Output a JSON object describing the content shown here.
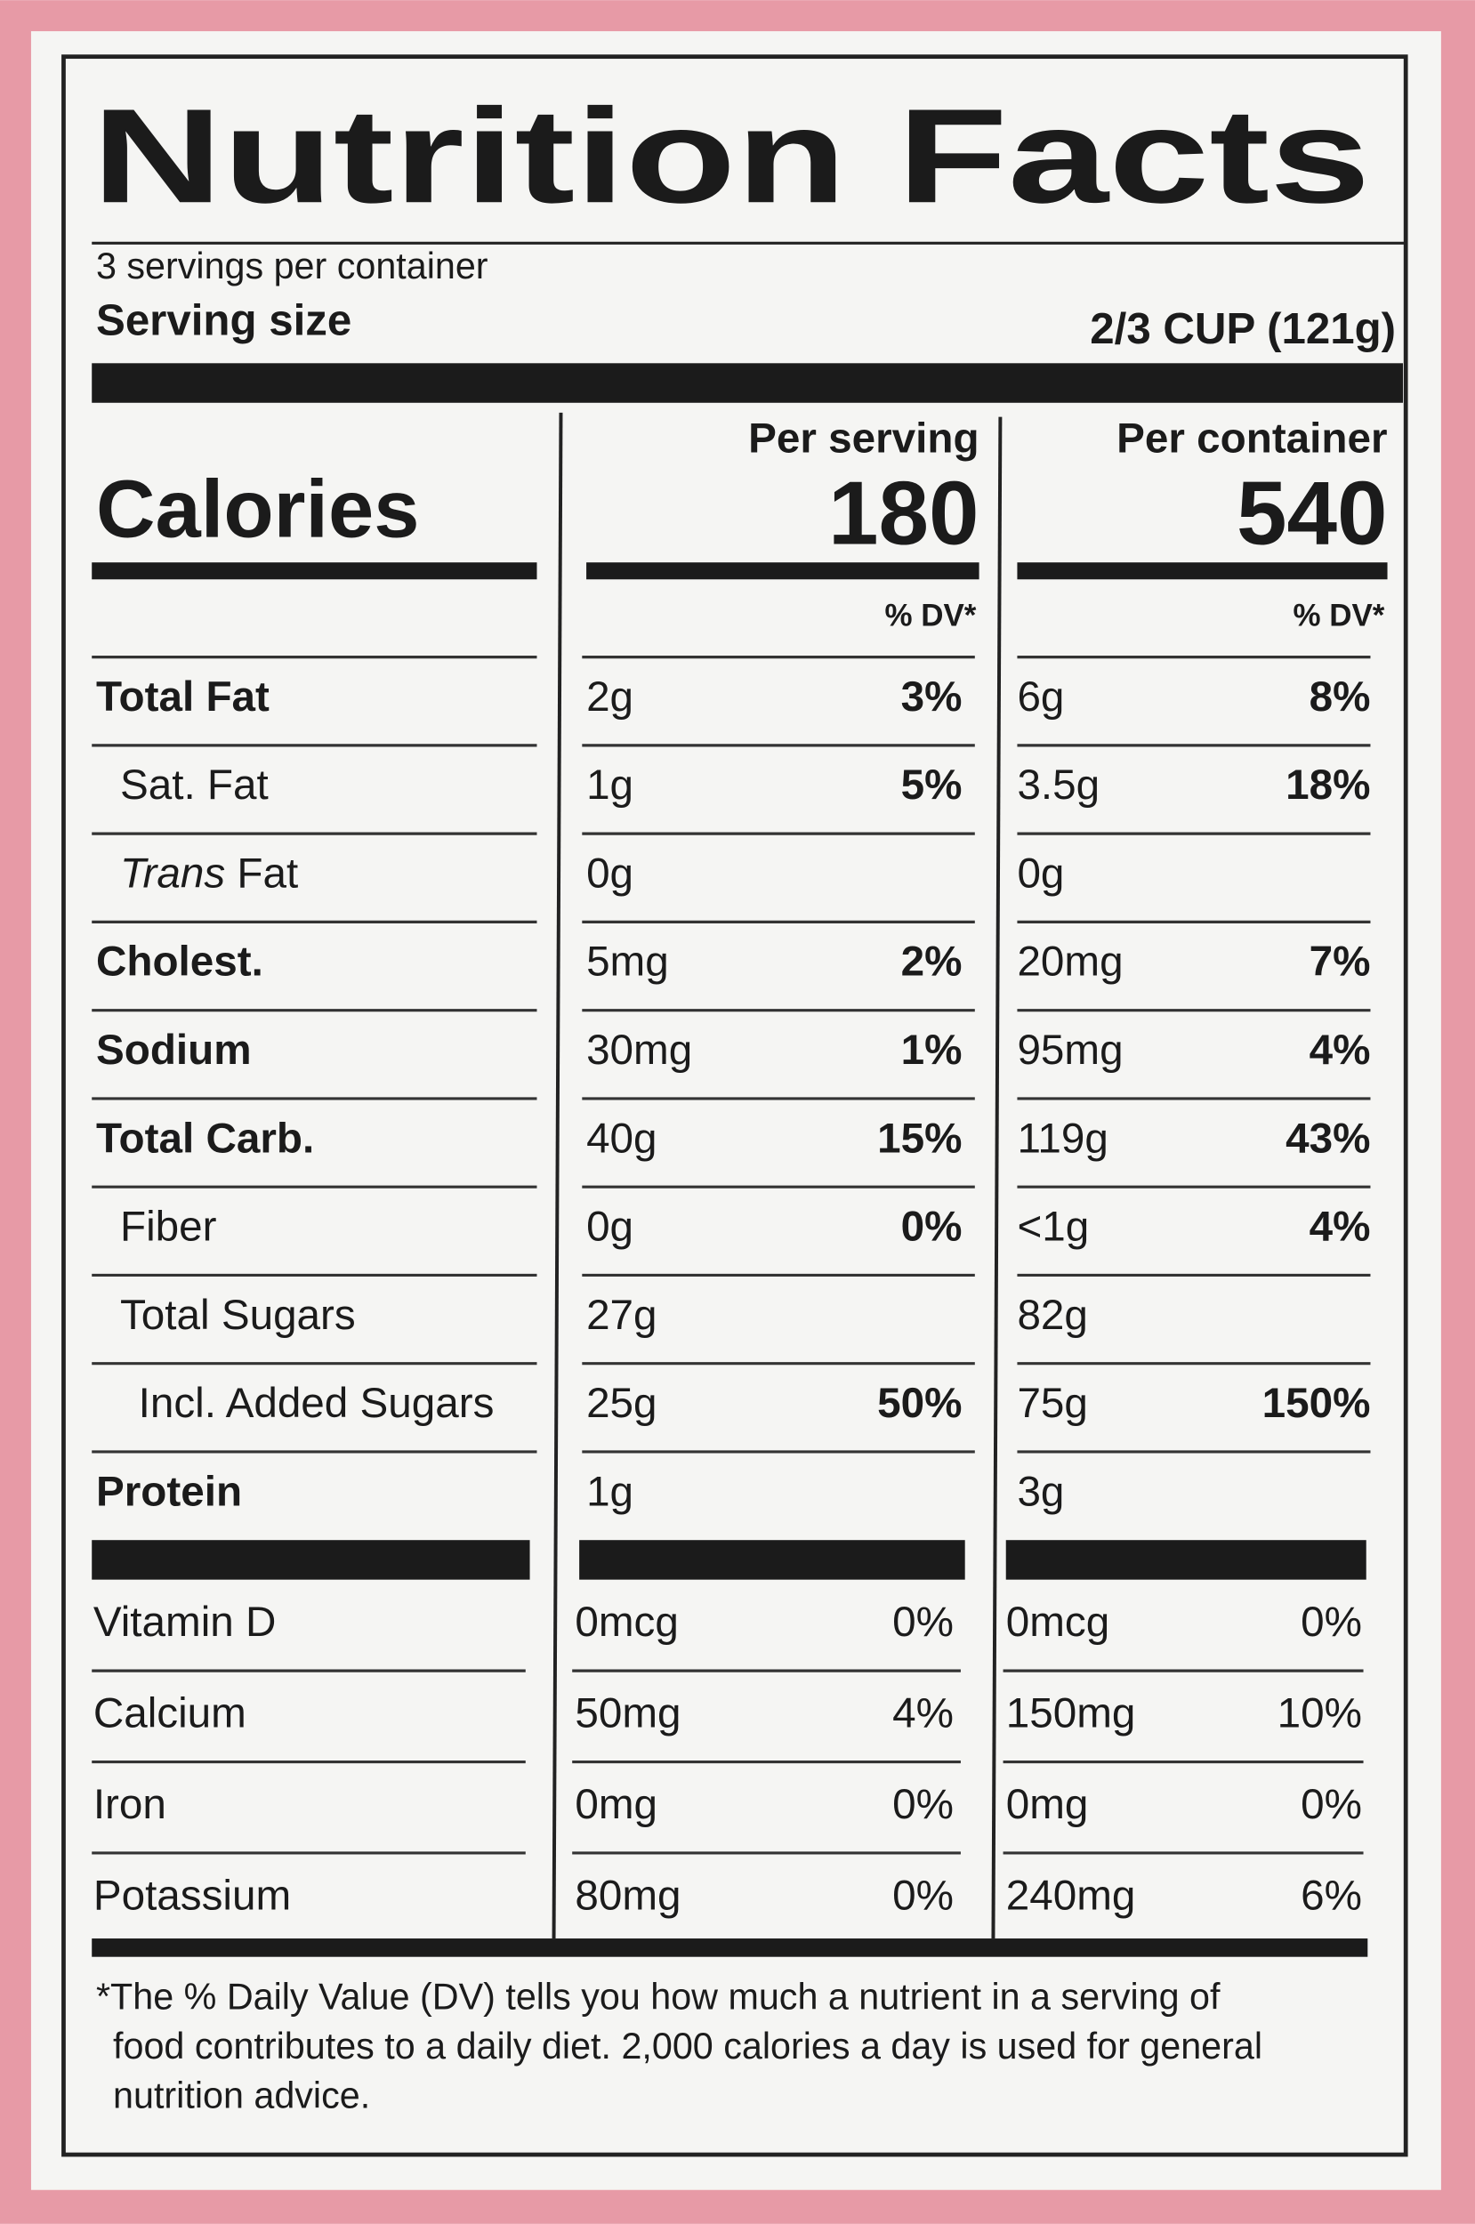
{
  "title": "Nutrition Facts",
  "servings": "3 servings per container",
  "serving_size_label": "Serving size",
  "serving_size": "2/3 CUP (121g)",
  "calories_label": "Calories",
  "columns": [
    {
      "heading": "Per serving",
      "calories": "180",
      "dv_header": "% DV*"
    },
    {
      "heading": "Per container",
      "calories": "540",
      "dv_header": "% DV*"
    }
  ],
  "rows": [
    {
      "name": "Total Fat",
      "bold": true,
      "indent": 0,
      "cells": [
        {
          "amount": "2g",
          "dv": "3%"
        },
        {
          "amount": "6g",
          "dv": "8%"
        }
      ]
    },
    {
      "name": "Sat. Fat",
      "bold": false,
      "indent": 1,
      "cells": [
        {
          "amount": "1g",
          "dv": "5%"
        },
        {
          "amount": "3.5g",
          "dv": "18%"
        }
      ]
    },
    {
      "name_italic": "Trans",
      "name": "Fat",
      "bold": false,
      "indent": 1,
      "cells": [
        {
          "amount": "0g"
        },
        {
          "amount": "0g"
        }
      ]
    },
    {
      "name": "Cholest.",
      "bold": true,
      "indent": 0,
      "cells": [
        {
          "amount": "5mg",
          "dv": "2%"
        },
        {
          "amount": "20mg",
          "dv": "7%"
        }
      ]
    },
    {
      "name": "Sodium",
      "bold": true,
      "indent": 0,
      "cells": [
        {
          "amount": "30mg",
          "dv": "1%"
        },
        {
          "amount": "95mg",
          "dv": "4%"
        }
      ]
    },
    {
      "name": "Total Carb.",
      "bold": true,
      "indent": 0,
      "cells": [
        {
          "amount": "40g",
          "dv": "15%"
        },
        {
          "amount": "119g",
          "dv": "43%"
        }
      ]
    },
    {
      "name": "Fiber",
      "bold": false,
      "indent": 1,
      "cells": [
        {
          "amount": "0g",
          "dv": "0%"
        },
        {
          "amount": "<1g",
          "dv": "4%"
        }
      ]
    },
    {
      "name": "Total Sugars",
      "bold": false,
      "indent": 1,
      "cells": [
        {
          "amount": "27g"
        },
        {
          "amount": "82g"
        }
      ]
    },
    {
      "name": "Incl. Added Sugars",
      "bold": false,
      "indent": 2,
      "cells": [
        {
          "amount": "25g",
          "dv": "50%"
        },
        {
          "amount": "75g",
          "dv": "150%"
        }
      ]
    },
    {
      "name": "Protein",
      "bold": true,
      "indent": 0,
      "cells": [
        {
          "amount": "1g"
        },
        {
          "amount": "3g"
        }
      ]
    }
  ],
  "vitamins": [
    {
      "name": "Vitamin D",
      "cells": [
        {
          "amount": "0mcg",
          "dv": "0%"
        },
        {
          "amount": "0mcg",
          "dv": "0%"
        }
      ]
    },
    {
      "name": "Calcium",
      "cells": [
        {
          "amount": "50mg",
          "dv": "4%"
        },
        {
          "amount": "150mg",
          "dv": "10%"
        }
      ]
    },
    {
      "name": "Iron",
      "cells": [
        {
          "amount": "0mg",
          "dv": "0%"
        },
        {
          "amount": "0mg",
          "dv": "0%"
        }
      ]
    },
    {
      "name": "Potassium",
      "cells": [
        {
          "amount": "80mg",
          "dv": "0%"
        },
        {
          "amount": "240mg",
          "dv": "6%"
        }
      ]
    }
  ],
  "footnote": [
    "*The % Daily Value (DV) tells you how much a nutrient in a serving of",
    "food contributes to a daily diet. 2,000 calories a day is used for general",
    "nutrition advice."
  ]
}
